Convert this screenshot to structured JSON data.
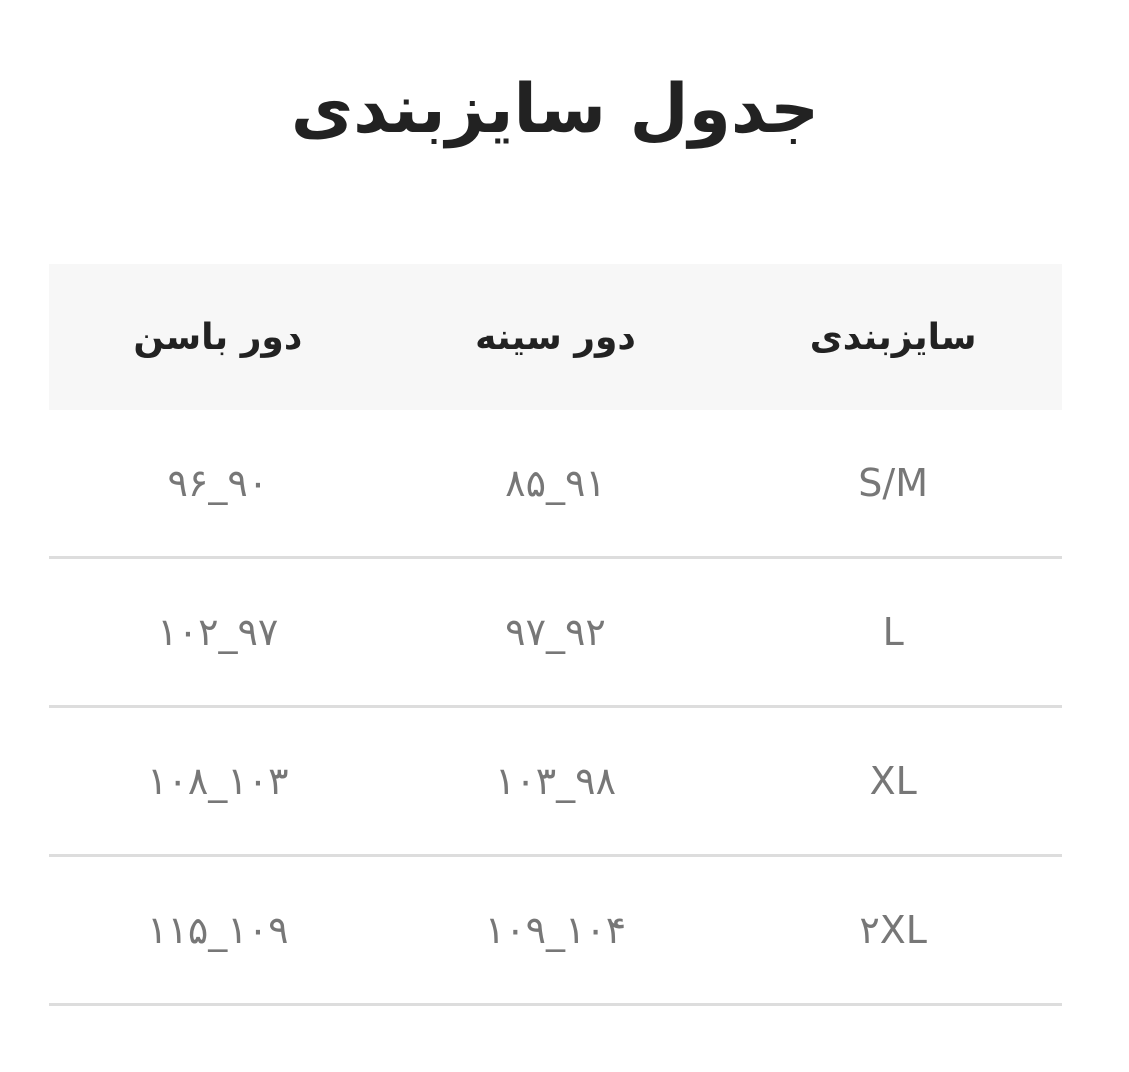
{
  "title": "جدول سایزبندی",
  "table": {
    "headers": [
      "سایزبندی",
      "دور سینه",
      "دور باسن"
    ],
    "rows": [
      [
        "S/M",
        "۸۵_۹۱",
        "۹۶_۹۰"
      ],
      [
        "L",
        "۹۷_۹۲",
        "۱۰۲_۹۷"
      ],
      [
        "XL",
        "۱۰۳_۹۸",
        "۱۰۸_۱۰۳"
      ],
      [
        "۲XL",
        "۱۰۹_۱۰۴",
        "۱۱۵_۱۰۹"
      ]
    ]
  }
}
